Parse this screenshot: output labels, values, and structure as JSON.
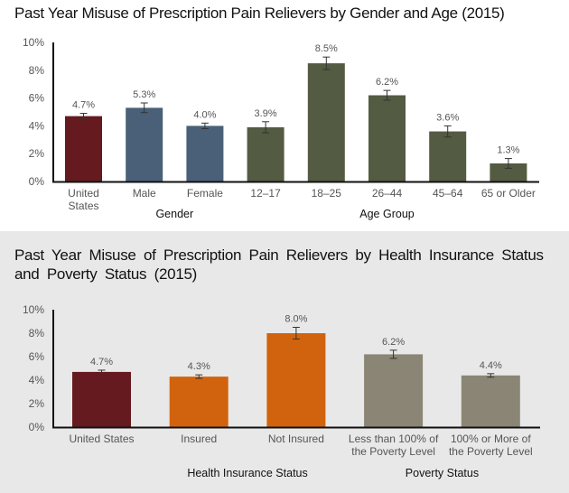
{
  "chart_data": [
    {
      "type": "bar",
      "title": "Past Year Misuse of Prescription Pain Relievers by Gender and Age (2015)",
      "xlabel": "",
      "ylabel": "",
      "ylim": [
        0,
        10
      ],
      "yticks": [
        "0%",
        "2%",
        "4%",
        "6%",
        "8%",
        "10%"
      ],
      "grid": false,
      "categories": [
        "United States",
        "Male",
        "Female",
        "12–17",
        "18–25",
        "26–44",
        "45–64",
        "65 or Older"
      ],
      "category_lines": [
        [
          "United",
          "States"
        ],
        [
          "Male"
        ],
        [
          "Female"
        ],
        [
          "12–17"
        ],
        [
          "18–25"
        ],
        [
          "26–44"
        ],
        [
          "45–64"
        ],
        [
          "65 or Older"
        ]
      ],
      "values": [
        4.7,
        5.3,
        4.0,
        3.9,
        8.5,
        6.2,
        3.6,
        1.3
      ],
      "labels": [
        "4.7%",
        "5.3%",
        "4.0%",
        "3.9%",
        "8.5%",
        "6.2%",
        "3.6%",
        "1.3%"
      ],
      "error": [
        0.2,
        0.35,
        0.2,
        0.4,
        0.45,
        0.35,
        0.4,
        0.35
      ],
      "colors": [
        "#641a1e",
        "#4a6078",
        "#4a6078",
        "#535b42",
        "#535b42",
        "#535b42",
        "#535b42",
        "#535b42"
      ],
      "groups": [
        {
          "label": "Gender",
          "span": [
            1,
            2
          ]
        },
        {
          "label": "Age Group",
          "span": [
            3,
            7
          ]
        }
      ]
    },
    {
      "type": "bar",
      "title": "Past Year Misuse of Prescription Pain Relievers by Health Insurance Status and Poverty Status (2015)",
      "xlabel": "",
      "ylabel": "",
      "ylim": [
        0,
        10
      ],
      "yticks": [
        "0%",
        "2%",
        "4%",
        "6%",
        "8%",
        "10%"
      ],
      "grid": false,
      "categories": [
        "United States",
        "Insured",
        "Not Insured",
        "Less than 100% of the Poverty Level",
        "100% or More of the Poverty Level"
      ],
      "category_lines": [
        [
          "United States"
        ],
        [
          "Insured"
        ],
        [
          "Not Insured"
        ],
        [
          "Less than 100% of",
          "the Poverty Level"
        ],
        [
          "100% or More of",
          "the Poverty Level"
        ]
      ],
      "values": [
        4.7,
        4.3,
        8.0,
        6.2,
        4.4
      ],
      "labels": [
        "4.7%",
        "4.3%",
        "8.0%",
        "6.2%",
        "4.4%"
      ],
      "error": [
        0.15,
        0.15,
        0.5,
        0.35,
        0.15
      ],
      "colors": [
        "#641a1e",
        "#d2630e",
        "#d2630e",
        "#8b8575",
        "#8b8575"
      ],
      "groups": [
        {
          "label": "Health Insurance Status",
          "span": [
            1,
            2
          ]
        },
        {
          "label": "Poverty Status",
          "span": [
            3,
            4
          ]
        }
      ]
    }
  ]
}
